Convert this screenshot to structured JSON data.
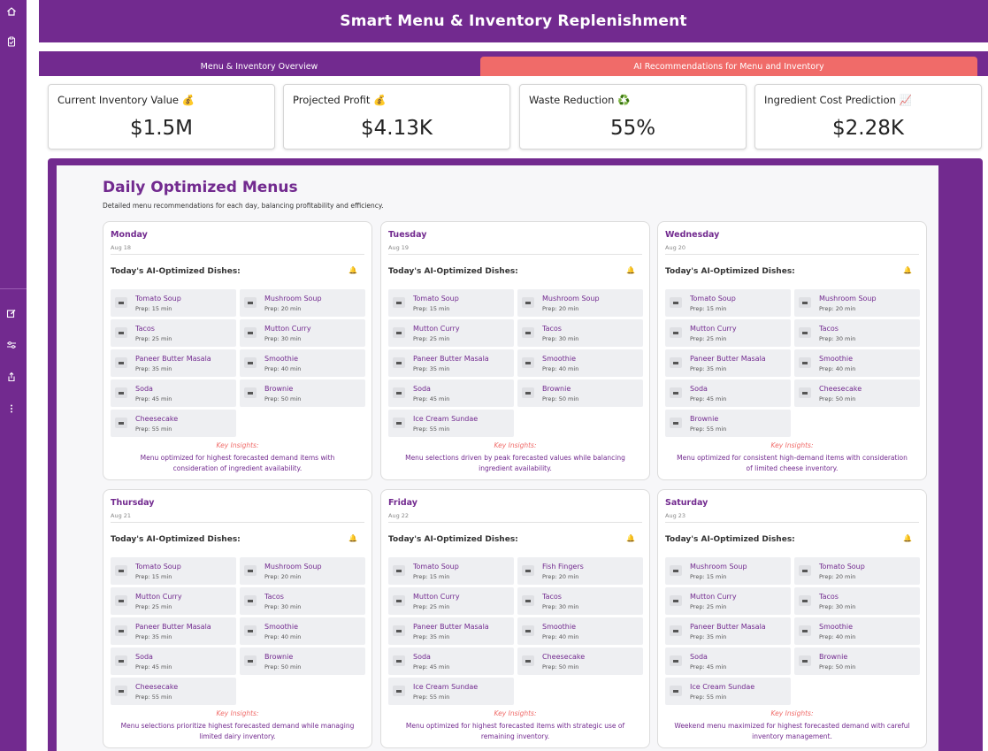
{
  "header": {
    "title": "Smart Menu & Inventory Replenishment"
  },
  "tabs": [
    {
      "label": "Menu & Inventory Overview",
      "active": false
    },
    {
      "label": "AI Recommendations for Menu and Inventory",
      "active": true
    }
  ],
  "rail": {
    "icons": [
      "home-icon",
      "clipboard-icon",
      "edit-icon",
      "sliders-icon",
      "share-icon",
      "more-vertical-icon"
    ]
  },
  "kpis": [
    {
      "label": "Current Inventory Value 💰",
      "value": "$1.5M"
    },
    {
      "label": "Projected Profit 💰",
      "value": "$4.13K"
    },
    {
      "label": "Waste Reduction ♻️",
      "value": "55%"
    },
    {
      "label": "Ingredient Cost Prediction 📈",
      "value": "$2.28K"
    }
  ],
  "section": {
    "title": "Daily Optimized Menus",
    "subtitle": "Detailed menu recommendations for each day, balancing profitability and efficiency."
  },
  "dishes_heading": "Today's AI-Optimized Dishes:",
  "insights_label": "Key Insights:",
  "days": [
    {
      "day": "Monday",
      "date": "Aug 18",
      "dishes": [
        {
          "name": "Tomato Soup",
          "prep": "Prep: 15 min"
        },
        {
          "name": "Mushroom Soup",
          "prep": "Prep: 20 min"
        },
        {
          "name": "Tacos",
          "prep": "Prep: 25 min"
        },
        {
          "name": "Mutton Curry",
          "prep": "Prep: 30 min"
        },
        {
          "name": "Paneer Butter Masala",
          "prep": "Prep: 35 min"
        },
        {
          "name": "Smoothie",
          "prep": "Prep: 40 min"
        },
        {
          "name": "Soda",
          "prep": "Prep: 45 min"
        },
        {
          "name": "Brownie",
          "prep": "Prep: 50 min"
        },
        {
          "name": "Cheesecake",
          "prep": "Prep: 55 min"
        }
      ],
      "insight": "Menu optimized for highest forecasted demand items with consideration of ingredient availability."
    },
    {
      "day": "Tuesday",
      "date": "Aug 19",
      "dishes": [
        {
          "name": "Tomato Soup",
          "prep": "Prep: 15 min"
        },
        {
          "name": "Mushroom Soup",
          "prep": "Prep: 20 min"
        },
        {
          "name": "Mutton Curry",
          "prep": "Prep: 25 min"
        },
        {
          "name": "Tacos",
          "prep": "Prep: 30 min"
        },
        {
          "name": "Paneer Butter Masala",
          "prep": "Prep: 35 min"
        },
        {
          "name": "Smoothie",
          "prep": "Prep: 40 min"
        },
        {
          "name": "Soda",
          "prep": "Prep: 45 min"
        },
        {
          "name": "Brownie",
          "prep": "Prep: 50 min"
        },
        {
          "name": "Ice Cream Sundae",
          "prep": "Prep: 55 min"
        }
      ],
      "insight": "Menu selections driven by peak forecasted values while balancing ingredient availability."
    },
    {
      "day": "Wednesday",
      "date": "Aug 20",
      "dishes": [
        {
          "name": "Tomato Soup",
          "prep": "Prep: 15 min"
        },
        {
          "name": "Mushroom Soup",
          "prep": "Prep: 20 min"
        },
        {
          "name": "Mutton Curry",
          "prep": "Prep: 25 min"
        },
        {
          "name": "Tacos",
          "prep": "Prep: 30 min"
        },
        {
          "name": "Paneer Butter Masala",
          "prep": "Prep: 35 min"
        },
        {
          "name": "Smoothie",
          "prep": "Prep: 40 min"
        },
        {
          "name": "Soda",
          "prep": "Prep: 45 min"
        },
        {
          "name": "Cheesecake",
          "prep": "Prep: 50 min"
        },
        {
          "name": "Brownie",
          "prep": "Prep: 55 min"
        }
      ],
      "insight": "Menu optimized for consistent high-demand items with consideration of limited cheese inventory."
    },
    {
      "day": "Thursday",
      "date": "Aug 21",
      "dishes": [
        {
          "name": "Tomato Soup",
          "prep": "Prep: 15 min"
        },
        {
          "name": "Mushroom Soup",
          "prep": "Prep: 20 min"
        },
        {
          "name": "Mutton Curry",
          "prep": "Prep: 25 min"
        },
        {
          "name": "Tacos",
          "prep": "Prep: 30 min"
        },
        {
          "name": "Paneer Butter Masala",
          "prep": "Prep: 35 min"
        },
        {
          "name": "Smoothie",
          "prep": "Prep: 40 min"
        },
        {
          "name": "Soda",
          "prep": "Prep: 45 min"
        },
        {
          "name": "Brownie",
          "prep": "Prep: 50 min"
        },
        {
          "name": "Cheesecake",
          "prep": "Prep: 55 min"
        }
      ],
      "insight": "Menu selections prioritize highest forecasted demand while managing limited dairy inventory."
    },
    {
      "day": "Friday",
      "date": "Aug 22",
      "dishes": [
        {
          "name": "Tomato Soup",
          "prep": "Prep: 15 min"
        },
        {
          "name": "Fish Fingers",
          "prep": "Prep: 20 min"
        },
        {
          "name": "Mutton Curry",
          "prep": "Prep: 25 min"
        },
        {
          "name": "Tacos",
          "prep": "Prep: 30 min"
        },
        {
          "name": "Paneer Butter Masala",
          "prep": "Prep: 35 min"
        },
        {
          "name": "Smoothie",
          "prep": "Prep: 40 min"
        },
        {
          "name": "Soda",
          "prep": "Prep: 45 min"
        },
        {
          "name": "Cheesecake",
          "prep": "Prep: 50 min"
        },
        {
          "name": "Ice Cream Sundae",
          "prep": "Prep: 55 min"
        }
      ],
      "insight": "Menu optimized for highest forecasted items with strategic use of remaining inventory."
    },
    {
      "day": "Saturday",
      "date": "Aug 23",
      "dishes": [
        {
          "name": "Mushroom Soup",
          "prep": "Prep: 15 min"
        },
        {
          "name": "Tomato Soup",
          "prep": "Prep: 20 min"
        },
        {
          "name": "Mutton Curry",
          "prep": "Prep: 25 min"
        },
        {
          "name": "Tacos",
          "prep": "Prep: 30 min"
        },
        {
          "name": "Paneer Butter Masala",
          "prep": "Prep: 35 min"
        },
        {
          "name": "Smoothie",
          "prep": "Prep: 40 min"
        },
        {
          "name": "Soda",
          "prep": "Prep: 45 min"
        },
        {
          "name": "Brownie",
          "prep": "Prep: 50 min"
        },
        {
          "name": "Ice Cream Sundae",
          "prep": "Prep: 55 min"
        }
      ],
      "insight": "Weekend menu maximized for highest forecasted demand with careful inventory management."
    }
  ]
}
